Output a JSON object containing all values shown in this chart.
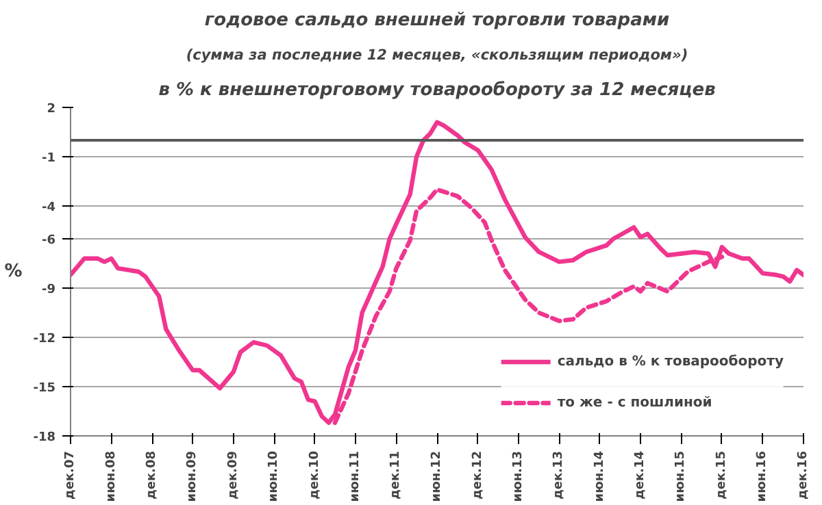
{
  "chart_data": {
    "type": "line",
    "title": "годовое сальдо внешней торговли товарами",
    "subtitle": "(сумма за последние 12 месяцев, «скользящим периодом»)",
    "annotations": [
      "в % к внешнеторговому товарообороту за 12 месяцев"
    ],
    "ylabel": "%",
    "xlim": [
      "2007-12",
      "2016-12"
    ],
    "xticks": [
      {
        "value": "2007-12",
        "label": "дек.07"
      },
      {
        "value": "2008-06",
        "label": "июн.08"
      },
      {
        "value": "2008-12",
        "label": "дек.08"
      },
      {
        "value": "2009-06",
        "label": "июн.09"
      },
      {
        "value": "2009-12",
        "label": "дек.09"
      },
      {
        "value": "2010-06",
        "label": "июн.10"
      },
      {
        "value": "2010-12",
        "label": "дек.10"
      },
      {
        "value": "2011-06",
        "label": "июн.11"
      },
      {
        "value": "2011-12",
        "label": "дек.11"
      },
      {
        "value": "2012-06",
        "label": "июн.12"
      },
      {
        "value": "2012-12",
        "label": "дек.12"
      },
      {
        "value": "2013-06",
        "label": "июн.13"
      },
      {
        "value": "2013-12",
        "label": "дек.13"
      },
      {
        "value": "2014-06",
        "label": "июн.14"
      },
      {
        "value": "2014-12",
        "label": "дек.14"
      },
      {
        "value": "2015-06",
        "label": "июн.15"
      },
      {
        "value": "2015-12",
        "label": "дек.15"
      },
      {
        "value": "2016-06",
        "label": "июн.16"
      },
      {
        "value": "2016-12",
        "label": "дек.16"
      }
    ],
    "ylim": [
      -18,
      2
    ],
    "yticks": [
      2,
      -1,
      -4,
      -6,
      -9,
      -12,
      -15,
      -18
    ],
    "grid": "y",
    "legend": "bottom right",
    "marker": "none",
    "ref_lines": [
      {
        "axis": "y",
        "value": 0,
        "color": "#595959"
      }
    ],
    "series": [
      {
        "name": "сальдо в % к товарообороту",
        "color": "#f0368f",
        "line_style": "solid",
        "x": [
          "2007-12",
          "2008-02",
          "2008-04",
          "2008-05",
          "2008-06",
          "2008-07",
          "2008-10",
          "2008-11",
          "2009-01",
          "2009-02",
          "2009-04",
          "2009-06",
          "2009-07",
          "2009-10",
          "2009-12",
          "2010-01",
          "2010-03",
          "2010-05",
          "2010-07",
          "2010-09",
          "2010-10",
          "2010-11",
          "2010-12",
          "2011-01",
          "2011-02",
          "2011-03",
          "2011-05",
          "2011-06",
          "2011-07",
          "2011-09",
          "2011-10",
          "2011-11",
          "2011-12",
          "2012-02",
          "2012-03",
          "2012-04",
          "2012-05",
          "2012-06",
          "2012-07",
          "2012-09",
          "2012-10",
          "2012-12",
          "2013-02",
          "2013-04",
          "2013-07",
          "2013-09",
          "2013-12",
          "2014-02",
          "2014-04",
          "2014-07",
          "2014-08",
          "2014-11",
          "2014-12",
          "2015-01",
          "2015-03",
          "2015-04",
          "2015-08",
          "2015-10",
          "2015-11",
          "2015-12",
          "2016-01",
          "2016-03",
          "2016-04",
          "2016-06",
          "2016-08",
          "2016-09",
          "2016-10",
          "2016-11",
          "2016-12"
        ],
        "values": [
          -8.2,
          -7.2,
          -7.2,
          -7.4,
          -7.2,
          -7.8,
          -8.0,
          -8.3,
          -9.5,
          -11.5,
          -12.8,
          -14.0,
          -14.0,
          -15.1,
          -14.1,
          -12.9,
          -12.3,
          -12.5,
          -13.1,
          -14.5,
          -14.7,
          -15.8,
          -15.9,
          -16.8,
          -17.2,
          -16.7,
          -13.8,
          -12.8,
          -10.5,
          -8.6,
          -7.7,
          -6.0,
          -5.1,
          -3.3,
          -1.0,
          0,
          0.4,
          1.1,
          0.9,
          0.3,
          -0.1,
          -0.6,
          -1.8,
          -3.6,
          -5.9,
          -6.8,
          -7.4,
          -7.3,
          -6.8,
          -6.4,
          -6.0,
          -5.3,
          -5.9,
          -5.7,
          -6.6,
          -7.0,
          -6.8,
          -6.9,
          -7.7,
          -6.5,
          -6.9,
          -7.2,
          -7.2,
          -8.1,
          -8.2,
          -8.3,
          -8.6,
          -7.9,
          -8.2
        ]
      },
      {
        "name": "то же - с пошлиной",
        "color": "#f0368f",
        "line_style": "dashed",
        "x": [
          "2011-03",
          "2011-05",
          "2011-07",
          "2011-09",
          "2011-11",
          "2011-12",
          "2012-02",
          "2012-03",
          "2012-05",
          "2012-06",
          "2012-09",
          "2012-11",
          "2013-01",
          "2013-02",
          "2013-04",
          "2013-07",
          "2013-09",
          "2013-12",
          "2014-02",
          "2014-04",
          "2014-07",
          "2014-09",
          "2014-11",
          "2014-12",
          "2015-01",
          "2015-04",
          "2015-07",
          "2015-10",
          "2015-12"
        ],
        "values": [
          -17.2,
          -15.4,
          -12.8,
          -10.7,
          -9.2,
          -7.8,
          -6.1,
          -4.3,
          -3.5,
          -3.0,
          -3.4,
          -4.1,
          -5.0,
          -6.1,
          -7.9,
          -9.7,
          -10.5,
          -11.0,
          -10.9,
          -10.2,
          -9.8,
          -9.3,
          -8.9,
          -9.2,
          -8.7,
          -9.2,
          -8.0,
          -7.4,
          -7.1
        ]
      }
    ]
  }
}
